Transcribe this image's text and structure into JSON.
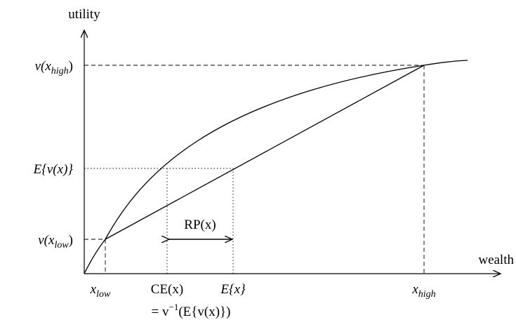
{
  "axes": {
    "y_title": "utility",
    "x_title": "wealth"
  },
  "y_labels": {
    "v_high": {
      "base": "v(x",
      "sub": "high",
      "close": ")"
    },
    "expected_v": "E{v(x)}",
    "v_low": {
      "base": "v(x",
      "sub": "low",
      "close": ")"
    }
  },
  "x_labels": {
    "x_low": {
      "base": "x",
      "sub": "low"
    },
    "ce": "CE(x)",
    "ce_def": {
      "prefix": "= v",
      "sup": "−1",
      "suffix": "(E{v(x)})"
    },
    "expected_x": "E{x}",
    "x_high": {
      "base": "x",
      "sub": "high"
    }
  },
  "annotations": {
    "risk_premium": "RP(x)"
  },
  "colors": {
    "ink": "#000000",
    "background": "#ffffff"
  }
}
